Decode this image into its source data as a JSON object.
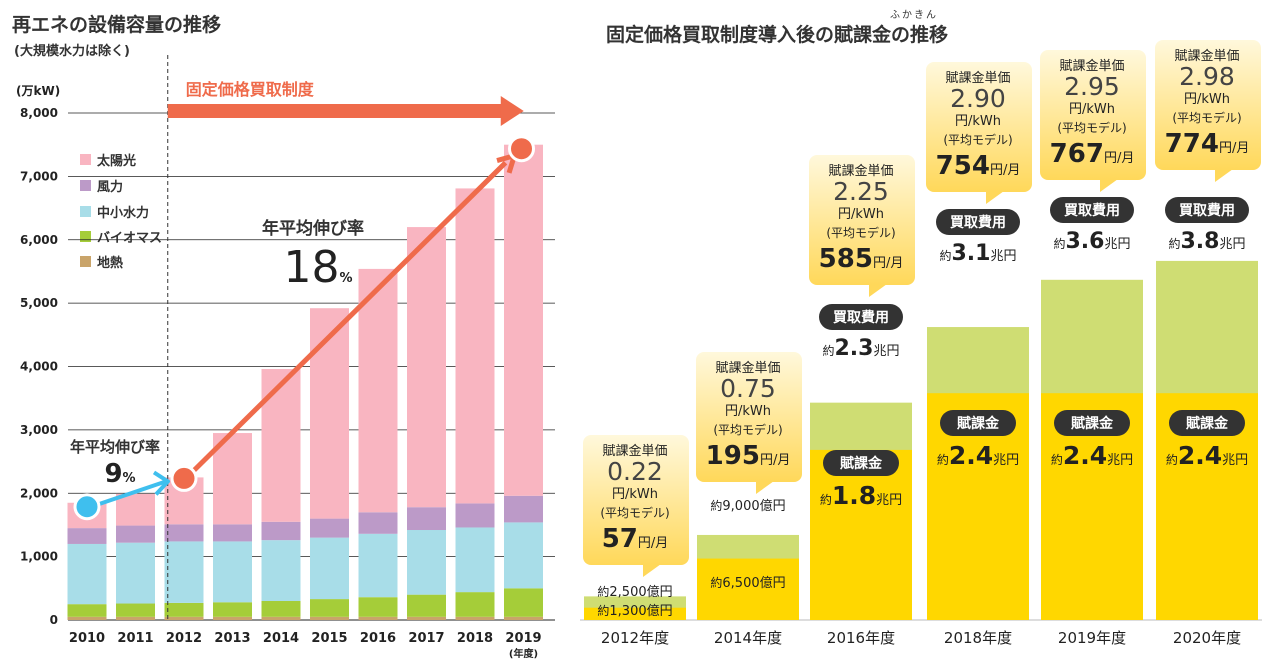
{
  "left": {
    "title": "再エネの設備容量の推移",
    "subtitle": "(大規模水力は除く)",
    "unit": "(万kW)",
    "fit_label": "固定価格買取制度",
    "annotation_early": {
      "label": "年平均伸び率",
      "value": "9",
      "unit": "%"
    },
    "annotation_late": {
      "label": "年平均伸び率",
      "value": "18",
      "unit": "%"
    },
    "year_unit": "(年度)",
    "colors": {
      "solar": "#f9b5c1",
      "wind": "#bc9ac8",
      "hydro": "#a8dde8",
      "biomass": "#a5cd39",
      "geo": "#c9a46a",
      "arrow": "#ef6b4b",
      "arrow_early": "#3fbfee"
    },
    "chart_data": {
      "type": "bar",
      "stacked": true,
      "categories": [
        "2010",
        "2011",
        "2012",
        "2013",
        "2014",
        "2015",
        "2016",
        "2017",
        "2018",
        "2019"
      ],
      "series": [
        {
          "name": "地熱",
          "color": "#c9a46a",
          "values": [
            50,
            50,
            50,
            50,
            50,
            50,
            50,
            50,
            50,
            50
          ]
        },
        {
          "name": "バイオマス",
          "color": "#a5cd39",
          "values": [
            200,
            210,
            220,
            230,
            250,
            280,
            310,
            350,
            390,
            450
          ]
        },
        {
          "name": "中小水力",
          "color": "#a8dde8",
          "values": [
            950,
            960,
            970,
            960,
            960,
            970,
            1000,
            1020,
            1020,
            1040
          ]
        },
        {
          "name": "風力",
          "color": "#bc9ac8",
          "values": [
            250,
            270,
            270,
            270,
            290,
            300,
            340,
            360,
            380,
            420
          ]
        },
        {
          "name": "太陽光",
          "color": "#f9b5c1",
          "values": [
            400,
            500,
            740,
            1440,
            2410,
            3320,
            3840,
            4420,
            4970,
            5540
          ]
        }
      ],
      "yticks": [
        "0",
        "1,000",
        "2,000",
        "3,000",
        "4,000",
        "5,000",
        "6,000",
        "7,000",
        "8,000"
      ],
      "ylim": [
        0,
        8000
      ],
      "legend_order": [
        "太陽光",
        "風力",
        "中小水力",
        "バイオマス",
        "地熱"
      ],
      "legend_placement": "top-left",
      "grid": true
    }
  },
  "right": {
    "title": "固定価格買取制度導入後の賦課金の推移",
    "furigana": "ふかきん",
    "colors": {
      "levy": "#ffd700",
      "purchase": "#cfdd73",
      "badge": "#333333",
      "callout": "#ffd85a",
      "callout_top": "#fff8dc"
    },
    "chart_data": {
      "type": "bar",
      "stacked": true,
      "categories": [
        "2012年度",
        "2014年度",
        "2016年度",
        "2018年度",
        "2019年度",
        "2020年度"
      ],
      "units": "兆円",
      "series": [
        {
          "name": "賦課金",
          "values": [
            0.13,
            0.65,
            1.8,
            2.4,
            2.4,
            2.4
          ]
        },
        {
          "name": "買取費用",
          "values": [
            0.25,
            0.9,
            2.3,
            3.1,
            3.6,
            3.8
          ]
        }
      ],
      "levy_labels": [
        {
          "pre": "約",
          "val": "1,300億円",
          "suf": "",
          "badge": ""
        },
        {
          "pre": "約",
          "val": "6,500億円",
          "suf": "",
          "badge": ""
        },
        {
          "pre": "約",
          "val": "1.8",
          "suf": "兆円",
          "badge": "賦課金"
        },
        {
          "pre": "約",
          "val": "2.4",
          "suf": "兆円",
          "badge": "賦課金"
        },
        {
          "pre": "約",
          "val": "2.4",
          "suf": "兆円",
          "badge": "賦課金"
        },
        {
          "pre": "約",
          "val": "2.4",
          "suf": "兆円",
          "badge": "賦課金"
        }
      ],
      "purchase_labels": [
        {
          "pre": "約",
          "val": "2,500億円",
          "suf": "",
          "badge": ""
        },
        {
          "pre": "約",
          "val": "9,000億円",
          "suf": "",
          "badge": ""
        },
        {
          "pre": "約",
          "val": "2.3",
          "suf": "兆円",
          "badge": "買取費用"
        },
        {
          "pre": "約",
          "val": "3.1",
          "suf": "兆円",
          "badge": "買取費用"
        },
        {
          "pre": "約",
          "val": "3.6",
          "suf": "兆円",
          "badge": "買取費用"
        },
        {
          "pre": "約",
          "val": "3.8",
          "suf": "兆円",
          "badge": "買取費用"
        }
      ],
      "callouts": [
        {
          "head": "賦課金単価",
          "rate": "0.22",
          "rate_unit": "円/kWh",
          "model": "(平均モデル)",
          "monthly": "57",
          "monthly_unit": "円/月"
        },
        {
          "head": "賦課金単価",
          "rate": "0.75",
          "rate_unit": "円/kWh",
          "model": "(平均モデル)",
          "monthly": "195",
          "monthly_unit": "円/月"
        },
        {
          "head": "賦課金単価",
          "rate": "2.25",
          "rate_unit": "円/kWh",
          "model": "(平均モデル)",
          "monthly": "585",
          "monthly_unit": "円/月"
        },
        {
          "head": "賦課金単価",
          "rate": "2.90",
          "rate_unit": "円/kWh",
          "model": "(平均モデル)",
          "monthly": "754",
          "monthly_unit": "円/月"
        },
        {
          "head": "賦課金単価",
          "rate": "2.95",
          "rate_unit": "円/kWh",
          "model": "(平均モデル)",
          "monthly": "767",
          "monthly_unit": "円/月"
        },
        {
          "head": "賦課金単価",
          "rate": "2.98",
          "rate_unit": "円/kWh",
          "model": "(平均モデル)",
          "monthly": "774",
          "monthly_unit": "円/月"
        }
      ]
    }
  }
}
